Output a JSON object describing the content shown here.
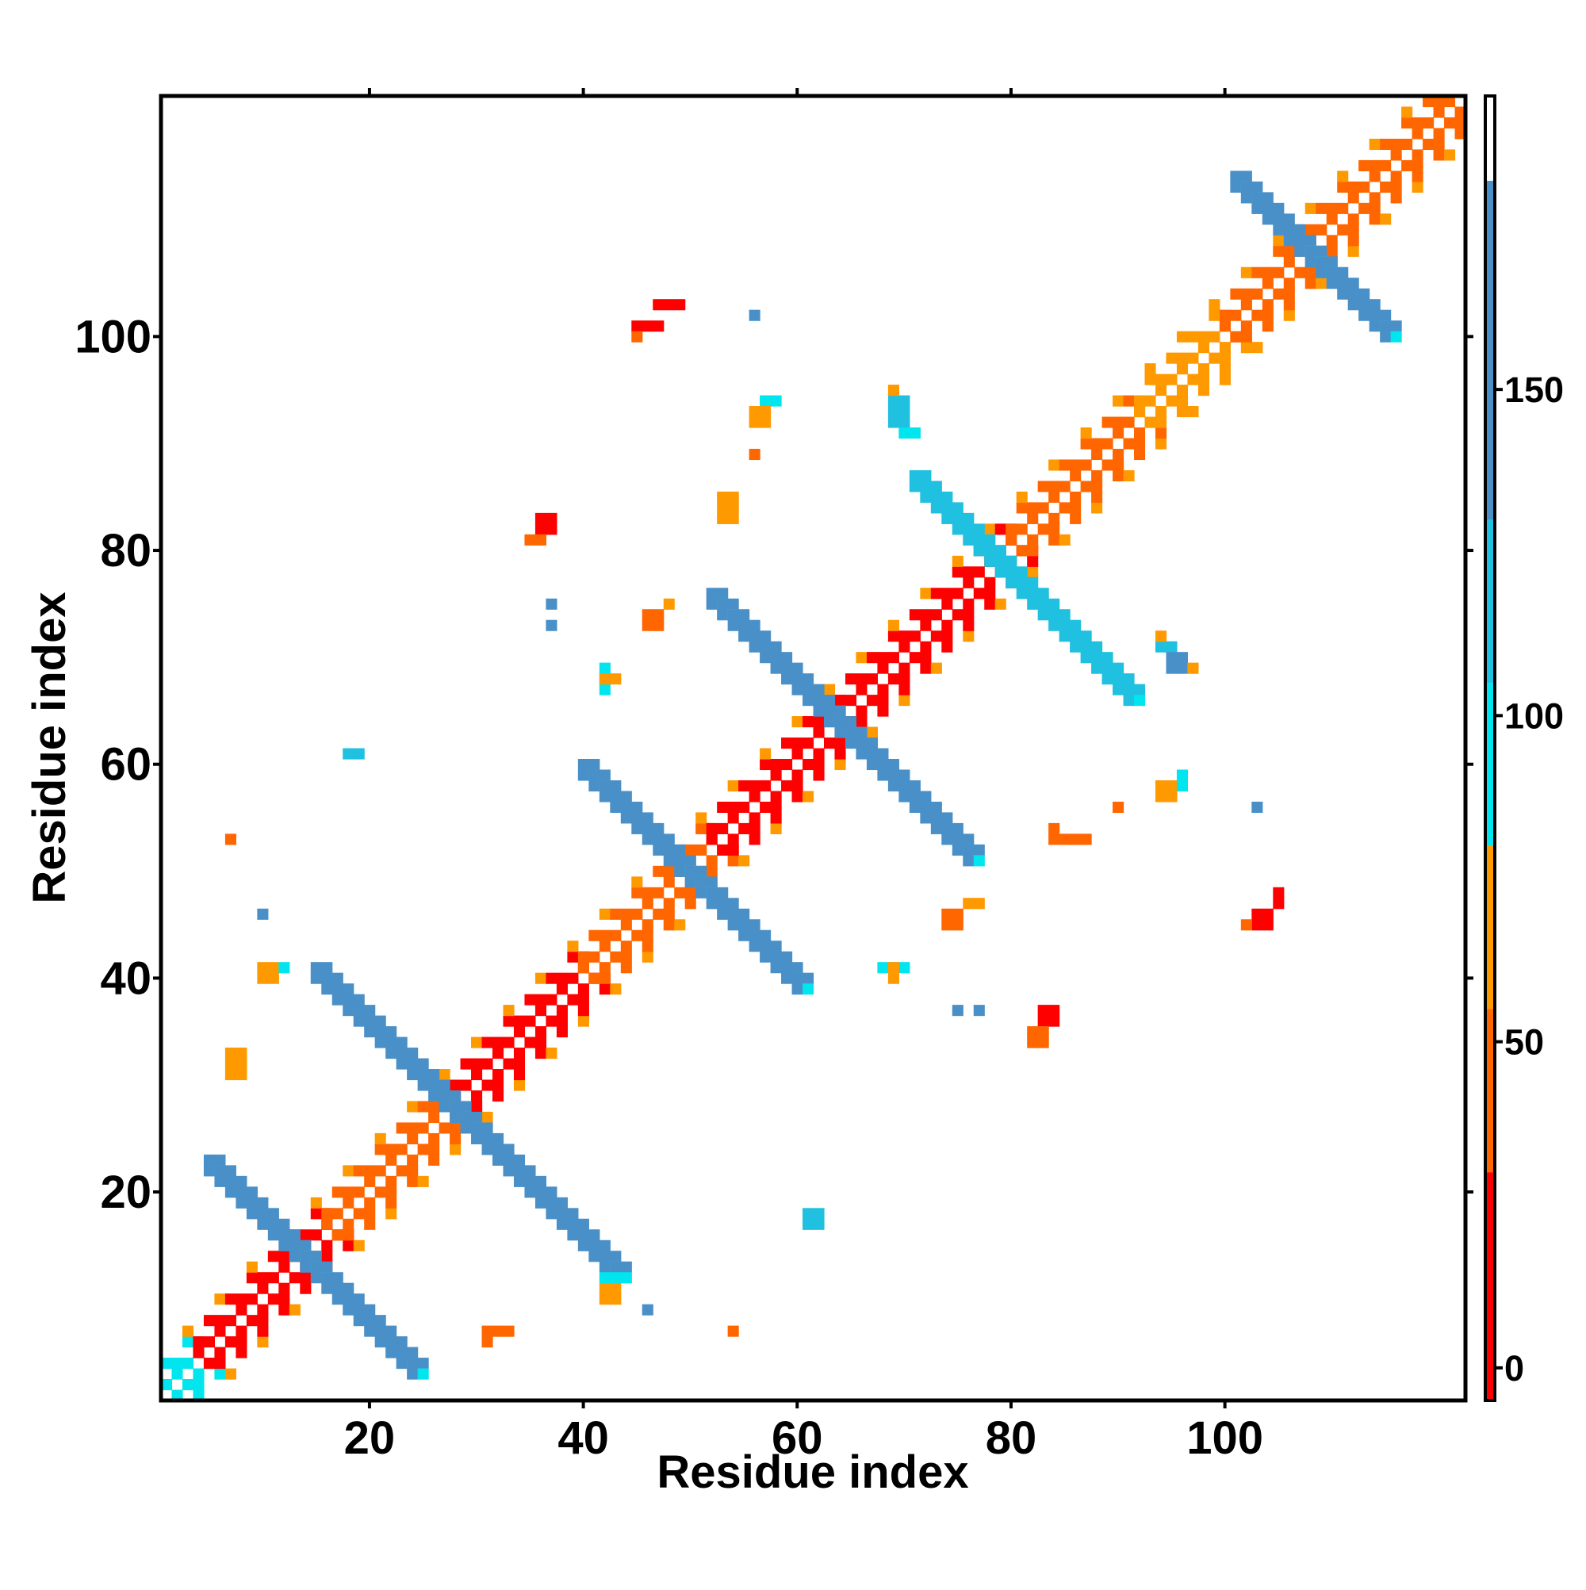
{
  "chart_data": {
    "type": "heatmap",
    "title": "",
    "xlabel": "Residue index",
    "ylabel": "Residue index",
    "xlim": [
      1,
      122
    ],
    "ylim": [
      1,
      122
    ],
    "x_ticks": [
      20,
      40,
      60,
      80,
      100
    ],
    "y_ticks": [
      20,
      40,
      60,
      80,
      100
    ],
    "grid": false,
    "colorbar": {
      "min": -5,
      "max": 195,
      "ticks": [
        0,
        50,
        100,
        150
      ],
      "bands": [
        {
          "from": -5,
          "to": 30,
          "color": "#ff0000"
        },
        {
          "from": 30,
          "to": 55,
          "color": "#ff6600"
        },
        {
          "from": 55,
          "to": 80,
          "color": "#ff9900"
        },
        {
          "from": 80,
          "to": 105,
          "color": "#00e5ee"
        },
        {
          "from": 105,
          "to": 130,
          "color": "#20c0e0"
        },
        {
          "from": 130,
          "to": 182,
          "color": "#4a90c8"
        },
        {
          "from": 182,
          "to": 195,
          "color": "#ffffff"
        }
      ]
    },
    "diagonal_bands": [
      {
        "from": 1,
        "to": 4,
        "color": "#00e5ee"
      },
      {
        "from": 4,
        "to": 16,
        "color": "#ff0000"
      },
      {
        "from": 16,
        "to": 28,
        "color": "#ff6600"
      },
      {
        "from": 28,
        "to": 40,
        "color": "#ff0000"
      },
      {
        "from": 40,
        "to": 52,
        "color": "#ff6600"
      },
      {
        "from": 52,
        "to": 64,
        "color": "#ff0000"
      },
      {
        "from": 64,
        "to": 80,
        "color": "#ff0000"
      },
      {
        "from": 80,
        "to": 92,
        "color": "#ff6600"
      },
      {
        "from": 92,
        "to": 100,
        "color": "#ff9900"
      },
      {
        "from": 100,
        "to": 122,
        "color": "#ff6600"
      }
    ],
    "antidiagonal_segments": [
      {
        "cx": 14,
        "cy": 14,
        "from": -9,
        "to": 10,
        "color": "#4a90c8"
      },
      {
        "cx": 27.5,
        "cy": 27.5,
        "from": -13,
        "to": 15,
        "color": "#4a90c8"
      },
      {
        "cx": 50,
        "cy": 50,
        "from": -10,
        "to": 10,
        "color": "#4a90c8"
      },
      {
        "cx": 64,
        "cy": 64,
        "from": -12,
        "to": 12,
        "color": "#4a90c8"
      },
      {
        "cx": 79,
        "cy": 79,
        "from": -8,
        "to": 12,
        "color": "#20c0e0"
      },
      {
        "cx": 108,
        "cy": 108,
        "from": -7,
        "to": 7,
        "color": "#4a90c8"
      }
    ],
    "blocks": [
      {
        "x": 36,
        "y": 82,
        "w": 2,
        "h": 2,
        "color": "#ff0000"
      },
      {
        "x": 35,
        "y": 81,
        "w": 2,
        "h": 1,
        "color": "#ff6600"
      },
      {
        "x": 47,
        "y": 103,
        "w": 3,
        "h": 1,
        "color": "#ff0000"
      },
      {
        "x": 45,
        "y": 101,
        "w": 3,
        "h": 1,
        "color": "#ff0000"
      },
      {
        "x": 45,
        "y": 100,
        "w": 1,
        "h": 1,
        "color": "#ff6600"
      },
      {
        "x": 56,
        "y": 102,
        "w": 1,
        "h": 1,
        "color": "#4a90c8"
      },
      {
        "x": 57,
        "y": 94,
        "w": 2,
        "h": 1,
        "color": "#00e5ee"
      },
      {
        "x": 56,
        "y": 92,
        "w": 2,
        "h": 2,
        "color": "#ff9900"
      },
      {
        "x": 69,
        "y": 92,
        "w": 2,
        "h": 3,
        "color": "#20c0e0"
      },
      {
        "x": 70,
        "y": 91,
        "w": 2,
        "h": 1,
        "color": "#00e5ee"
      },
      {
        "x": 69,
        "y": 95,
        "w": 1,
        "h": 1,
        "color": "#ff9900"
      },
      {
        "x": 56,
        "y": 89,
        "w": 1,
        "h": 1,
        "color": "#ff6600"
      },
      {
        "x": 53,
        "y": 83,
        "w": 2,
        "h": 3,
        "color": "#ff9900"
      },
      {
        "x": 37,
        "y": 75,
        "w": 1,
        "h": 1,
        "color": "#4a90c8"
      },
      {
        "x": 37,
        "y": 73,
        "w": 1,
        "h": 1,
        "color": "#4a90c8"
      },
      {
        "x": 46,
        "y": 73,
        "w": 2,
        "h": 2,
        "color": "#ff6600"
      },
      {
        "x": 48,
        "y": 75,
        "w": 1,
        "h": 1,
        "color": "#ff9900"
      },
      {
        "x": 42,
        "y": 67,
        "w": 1,
        "h": 3,
        "color": "#00e5ee"
      },
      {
        "x": 42,
        "y": 68,
        "w": 2,
        "h": 1,
        "color": "#ff9900"
      },
      {
        "x": 18,
        "y": 61,
        "w": 2,
        "h": 1,
        "color": "#20c0e0"
      },
      {
        "x": 7,
        "y": 53,
        "w": 1,
        "h": 1,
        "color": "#ff6600"
      },
      {
        "x": 10,
        "y": 46,
        "w": 1,
        "h": 1,
        "color": "#4a90c8"
      },
      {
        "x": 10,
        "y": 40,
        "w": 2,
        "h": 2,
        "color": "#ff9900"
      },
      {
        "x": 12,
        "y": 41,
        "w": 1,
        "h": 1,
        "color": "#00e5ee"
      },
      {
        "x": 7,
        "y": 31,
        "w": 2,
        "h": 3,
        "color": "#ff9900"
      },
      {
        "x": 42,
        "y": 10,
        "w": 2,
        "h": 2,
        "color": "#ff9900"
      },
      {
        "x": 42,
        "y": 12,
        "w": 2,
        "h": 1,
        "color": "#00e5ee"
      },
      {
        "x": 46,
        "y": 9,
        "w": 1,
        "h": 1,
        "color": "#4a90c8"
      },
      {
        "x": 54,
        "y": 7,
        "w": 1,
        "h": 1,
        "color": "#ff6600"
      },
      {
        "x": 31,
        "y": 7,
        "w": 3,
        "h": 1,
        "color": "#ff6600"
      },
      {
        "x": 31,
        "y": 6,
        "w": 1,
        "h": 1,
        "color": "#ff6600"
      },
      {
        "x": 61,
        "y": 17,
        "w": 2,
        "h": 2,
        "color": "#20c0e0"
      },
      {
        "x": 68,
        "y": 41,
        "w": 3,
        "h": 1,
        "color": "#00e5ee"
      },
      {
        "x": 69,
        "y": 40,
        "w": 1,
        "h": 2,
        "color": "#ff9900"
      },
      {
        "x": 75,
        "y": 37,
        "w": 1,
        "h": 1,
        "color": "#4a90c8"
      },
      {
        "x": 77,
        "y": 37,
        "w": 1,
        "h": 1,
        "color": "#4a90c8"
      },
      {
        "x": 83,
        "y": 36,
        "w": 2,
        "h": 2,
        "color": "#ff0000"
      },
      {
        "x": 82,
        "y": 34,
        "w": 2,
        "h": 2,
        "color": "#ff6600"
      },
      {
        "x": 74,
        "y": 45,
        "w": 2,
        "h": 2,
        "color": "#ff6600"
      },
      {
        "x": 76,
        "y": 47,
        "w": 2,
        "h": 1,
        "color": "#ff9900"
      },
      {
        "x": 84,
        "y": 53,
        "w": 4,
        "h": 1,
        "color": "#ff6600"
      },
      {
        "x": 84,
        "y": 54,
        "w": 1,
        "h": 1,
        "color": "#ff6600"
      },
      {
        "x": 90,
        "y": 56,
        "w": 1,
        "h": 1,
        "color": "#ff6600"
      },
      {
        "x": 94,
        "y": 57,
        "w": 2,
        "h": 2,
        "color": "#ff9900"
      },
      {
        "x": 96,
        "y": 58,
        "w": 1,
        "h": 2,
        "color": "#00e5ee"
      },
      {
        "x": 103,
        "y": 56,
        "w": 1,
        "h": 1,
        "color": "#4a90c8"
      },
      {
        "x": 103,
        "y": 45,
        "w": 2,
        "h": 2,
        "color": "#ff0000"
      },
      {
        "x": 105,
        "y": 47,
        "w": 1,
        "h": 2,
        "color": "#ff0000"
      },
      {
        "x": 102,
        "y": 45,
        "w": 1,
        "h": 1,
        "color": "#ff6600"
      },
      {
        "x": 94,
        "y": 71,
        "w": 2,
        "h": 1,
        "color": "#20c0e0"
      },
      {
        "x": 95,
        "y": 69,
        "w": 2,
        "h": 2,
        "color": "#4a90c8"
      },
      {
        "x": 97,
        "y": 69,
        "w": 1,
        "h": 1,
        "color": "#ff9900"
      },
      {
        "x": 94,
        "y": 72,
        "w": 1,
        "h": 1,
        "color": "#ff9900"
      }
    ]
  }
}
